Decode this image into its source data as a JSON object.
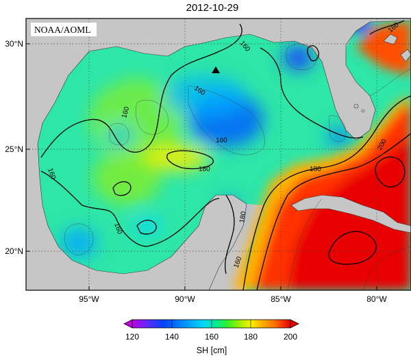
{
  "title": "2012-10-29",
  "watermark": "NOAA/AOML",
  "lat_labels": [
    "30°N",
    "25°N",
    "20°N"
  ],
  "lon_labels": [
    "95°W",
    "90°W",
    "85°W",
    "80°W"
  ],
  "contour_labels": [
    "160",
    "160",
    "160",
    "160",
    "160",
    "180",
    "180",
    "160",
    "160",
    "180",
    "200",
    "160"
  ],
  "colorbar": {
    "label": "SH [cm]",
    "ticks": [
      "120",
      "140",
      "160",
      "180",
      "200"
    ],
    "colors": [
      "#c000e0",
      "#5a2cff",
      "#0044ff",
      "#0090ff",
      "#00d8ff",
      "#00e8a0",
      "#30f030",
      "#a0f000",
      "#f8f000",
      "#ffb000",
      "#ff7000",
      "#ff2000",
      "#e80000"
    ]
  },
  "marker": "triangle",
  "colors": {
    "land": "#c6c6c6",
    "low": "#1a66ff",
    "mid": "#2ee6a8",
    "high": "#ff2a00"
  }
}
